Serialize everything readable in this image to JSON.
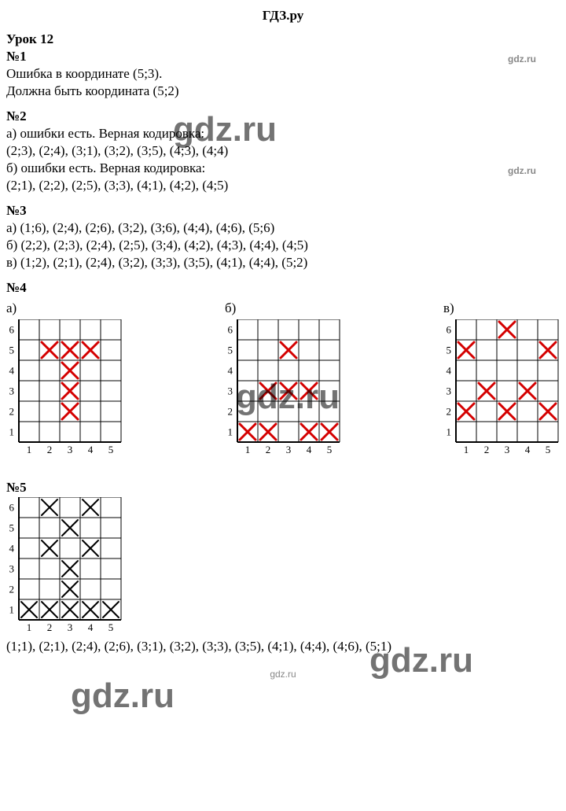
{
  "header": "ГДЗ.ру",
  "lesson": "Урок 12",
  "q1": {
    "num": "№1",
    "line1": "Ошибка в координате (5;3).",
    "line2": "Должна быть координата (5;2)"
  },
  "q2": {
    "num": "№2",
    "a_intro": "а) ошибки есть. Верная кодировка:",
    "a_list": "(2;3), (2;4), (3;1), (3;2), (3;5), (4;3), (4;4)",
    "b_intro": "б) ошибки есть. Верная кодировка:",
    "b_list": "(2;1), (2;2), (2;5), (3;3), (4;1), (4;2), (4;5)"
  },
  "q3": {
    "num": "№3",
    "a": "а) (1;6), (2;4), (2;6), (3;2), (3;6), (4;4), (4;6), (5;6)",
    "b": "б) (2;2), (2;3), (2;4), (2;5), (3;4), (4;2), (4;3), (4;4), (4;5)",
    "v": "в) (1;2), (2;1), (2;4), (3;2), (3;3), (3;5), (4;1), (4;4), (5;2)"
  },
  "q4": {
    "num": "№4",
    "labels": [
      "а)",
      "б)",
      "в)"
    ],
    "grid": {
      "cols": 5,
      "rows": 6,
      "cell": 26,
      "axis_color": "#000",
      "grid_color": "#000",
      "grid_width": 1,
      "x_color": "#d40000",
      "x_width": 3,
      "tick_font": 13,
      "x_labels": [
        "1",
        "2",
        "3",
        "4",
        "5"
      ],
      "y_labels": [
        "1",
        "2",
        "3",
        "4",
        "5",
        "6"
      ]
    },
    "a_cells": [
      [
        2,
        5
      ],
      [
        3,
        5
      ],
      [
        4,
        5
      ],
      [
        3,
        4
      ],
      [
        3,
        3
      ],
      [
        3,
        2
      ]
    ],
    "b_cells": [
      [
        3,
        5
      ],
      [
        2,
        3
      ],
      [
        3,
        3
      ],
      [
        4,
        3
      ],
      [
        1,
        1
      ],
      [
        2,
        1
      ],
      [
        4,
        1
      ],
      [
        5,
        1
      ]
    ],
    "c_cells": [
      [
        3,
        6
      ],
      [
        1,
        5
      ],
      [
        5,
        5
      ],
      [
        2,
        3
      ],
      [
        4,
        3
      ],
      [
        1,
        2
      ],
      [
        3,
        2
      ],
      [
        5,
        2
      ]
    ]
  },
  "q5": {
    "num": "№5",
    "grid": {
      "cols": 5,
      "rows": 6,
      "cell": 26,
      "axis_color": "#000",
      "grid_color": "#000",
      "grid_width": 1,
      "x_color": "#000",
      "x_width": 2,
      "tick_font": 13,
      "x_labels": [
        "1",
        "2",
        "3",
        "4",
        "5"
      ],
      "y_labels": [
        "1",
        "2",
        "3",
        "4",
        "5",
        "6"
      ]
    },
    "cells": [
      [
        1,
        1
      ],
      [
        2,
        1
      ],
      [
        2,
        4
      ],
      [
        2,
        6
      ],
      [
        3,
        1
      ],
      [
        3,
        2
      ],
      [
        3,
        3
      ],
      [
        3,
        5
      ],
      [
        4,
        1
      ],
      [
        4,
        4
      ],
      [
        4,
        6
      ],
      [
        5,
        1
      ]
    ],
    "coords": "(1;1), (2;1), (2;4), (2;6), (3;1), (3;2), (3;3), (3;5), (4;1), (4;4), (4;6), (5;1)"
  },
  "wm": "gdz.ru"
}
